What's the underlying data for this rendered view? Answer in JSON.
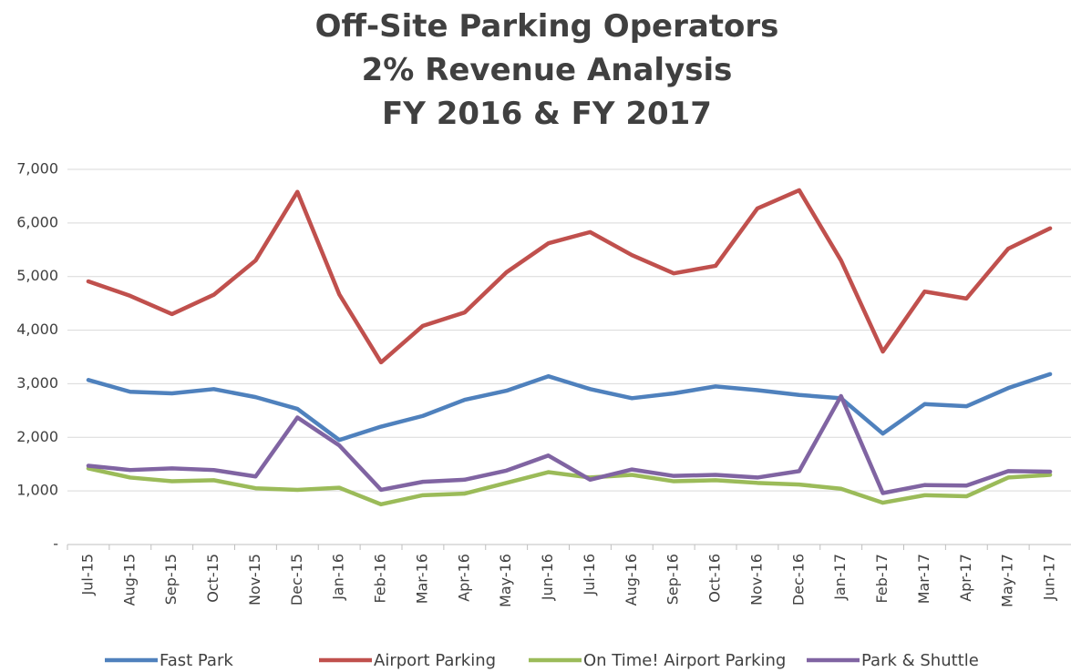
{
  "chart_data": {
    "type": "line",
    "title": [
      "Off-Site Parking Operators",
      "2% Revenue Analysis",
      "FY 2016 & FY 2017"
    ],
    "categories": [
      "Jul-15",
      "Aug-15",
      "Sep-15",
      "Oct-15",
      "Nov-15",
      "Dec-15",
      "Jan-16",
      "Feb-16",
      "Mar-16",
      "Apr-16",
      "May-16",
      "Jun-16",
      "Jul-16",
      "Aug-16",
      "Sep-16",
      "Oct-16",
      "Nov-16",
      "Dec-16",
      "Jan-17",
      "Feb-17",
      "Mar-17",
      "Apr-17",
      "May-17",
      "Jun-17"
    ],
    "series": [
      {
        "name": "Fast Park",
        "color": "#4f81bd",
        "values": [
          3070,
          2850,
          2820,
          2900,
          2750,
          2530,
          1950,
          2200,
          2400,
          2700,
          2870,
          3140,
          2900,
          2730,
          2820,
          2950,
          2880,
          2790,
          2730,
          2070,
          2620,
          2580,
          2920,
          3180
        ]
      },
      {
        "name": "Airport Parking",
        "color": "#c0504d",
        "values": [
          4910,
          4640,
          4300,
          4660,
          5300,
          6580,
          4670,
          3400,
          4080,
          4330,
          5080,
          5620,
          5830,
          5400,
          5060,
          5200,
          6270,
          6610,
          5300,
          3600,
          4720,
          4590,
          5520,
          5900
        ]
      },
      {
        "name": "On Time! Airport Parking",
        "color": "#9bbb59",
        "values": [
          1420,
          1250,
          1180,
          1200,
          1050,
          1020,
          1060,
          750,
          920,
          950,
          1150,
          1350,
          1250,
          1300,
          1180,
          1200,
          1150,
          1120,
          1040,
          780,
          920,
          900,
          1250,
          1300
        ]
      },
      {
        "name": "Park & Shuttle",
        "color": "#8064a2",
        "values": [
          1470,
          1390,
          1420,
          1390,
          1270,
          2370,
          1850,
          1020,
          1170,
          1210,
          1380,
          1660,
          1210,
          1400,
          1280,
          1300,
          1250,
          1370,
          2770,
          960,
          1110,
          1100,
          1370,
          1360
        ]
      }
    ],
    "ylim": [
      0,
      7000
    ],
    "yticks": [
      {
        "value": 0,
        "label": "-"
      },
      {
        "value": 1000,
        "label": "1,000"
      },
      {
        "value": 2000,
        "label": "2,000"
      },
      {
        "value": 3000,
        "label": "3,000"
      },
      {
        "value": 4000,
        "label": "4,000"
      },
      {
        "value": 5000,
        "label": "5,000"
      },
      {
        "value": 6000,
        "label": "6,000"
      },
      {
        "value": 7000,
        "label": "7,000"
      }
    ],
    "grid": true,
    "legend": "bottom"
  }
}
